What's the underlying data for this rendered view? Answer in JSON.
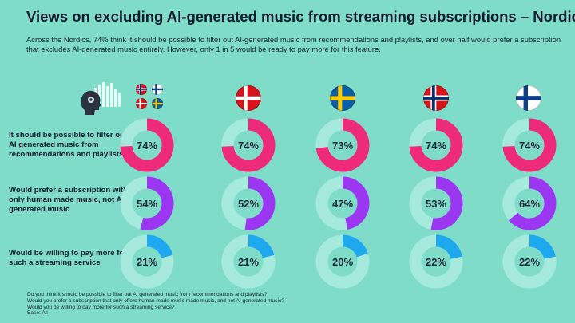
{
  "header": {
    "title": "Views on excluding AI-generated music from streaming subscriptions – Nordics",
    "subtitle": "Across the Nordics, 74% think it should be possible to filter out AI-generated music from recommendations and playlists, and over half would prefer a subscription that excludes AI-generated music entirely. However, only 1 in 5 would be ready to pay more for this feature."
  },
  "chart_data": {
    "type": "donut-grid",
    "columns": [
      "Nordics",
      "Denmark",
      "Sweden",
      "Norway",
      "Finland"
    ],
    "rows": [
      {
        "label": "It should be possible to filter out AI generated music from recommendations and playlists",
        "values": [
          74,
          74,
          73,
          74,
          74
        ],
        "display": [
          "74%",
          "74%",
          "73%",
          "74%",
          "74%"
        ],
        "color": "#ee2a7b"
      },
      {
        "label": "Would prefer a subscription with only human made music, not AI generated music",
        "values": [
          54,
          52,
          47,
          53,
          64
        ],
        "display": [
          "54%",
          "52%",
          "47%",
          "53%",
          "64%"
        ],
        "color": "#9b36f2"
      },
      {
        "label": "Would be willing to pay more for such a streaming service",
        "values": [
          21,
          21,
          20,
          22,
          22
        ],
        "display": [
          "21%",
          "21%",
          "20%",
          "22%",
          "22%"
        ],
        "color": "#1ea9ee"
      }
    ],
    "ring_track_color": "#a6eadd",
    "unit": "%"
  },
  "footnotes": [
    "Do you think it should be possible to filter out AI generated music from recommendations and playlists?",
    "Would you prefer a subscription that only offers human made music made music, and not AI generated music?",
    "Would you be willing to pay more for such a streaming service?",
    "Base: All"
  ],
  "icons": {
    "brand": "head-with-music-bars-icon",
    "flags": [
      "denmark-flag-icon",
      "sweden-flag-icon",
      "norway-flag-icon",
      "finland-flag-icon"
    ]
  },
  "colors": {
    "background": "#7fdcc9",
    "pink": "#ee2a7b",
    "purple": "#9b36f2",
    "blue": "#1ea9ee",
    "track": "#a6eadd"
  }
}
